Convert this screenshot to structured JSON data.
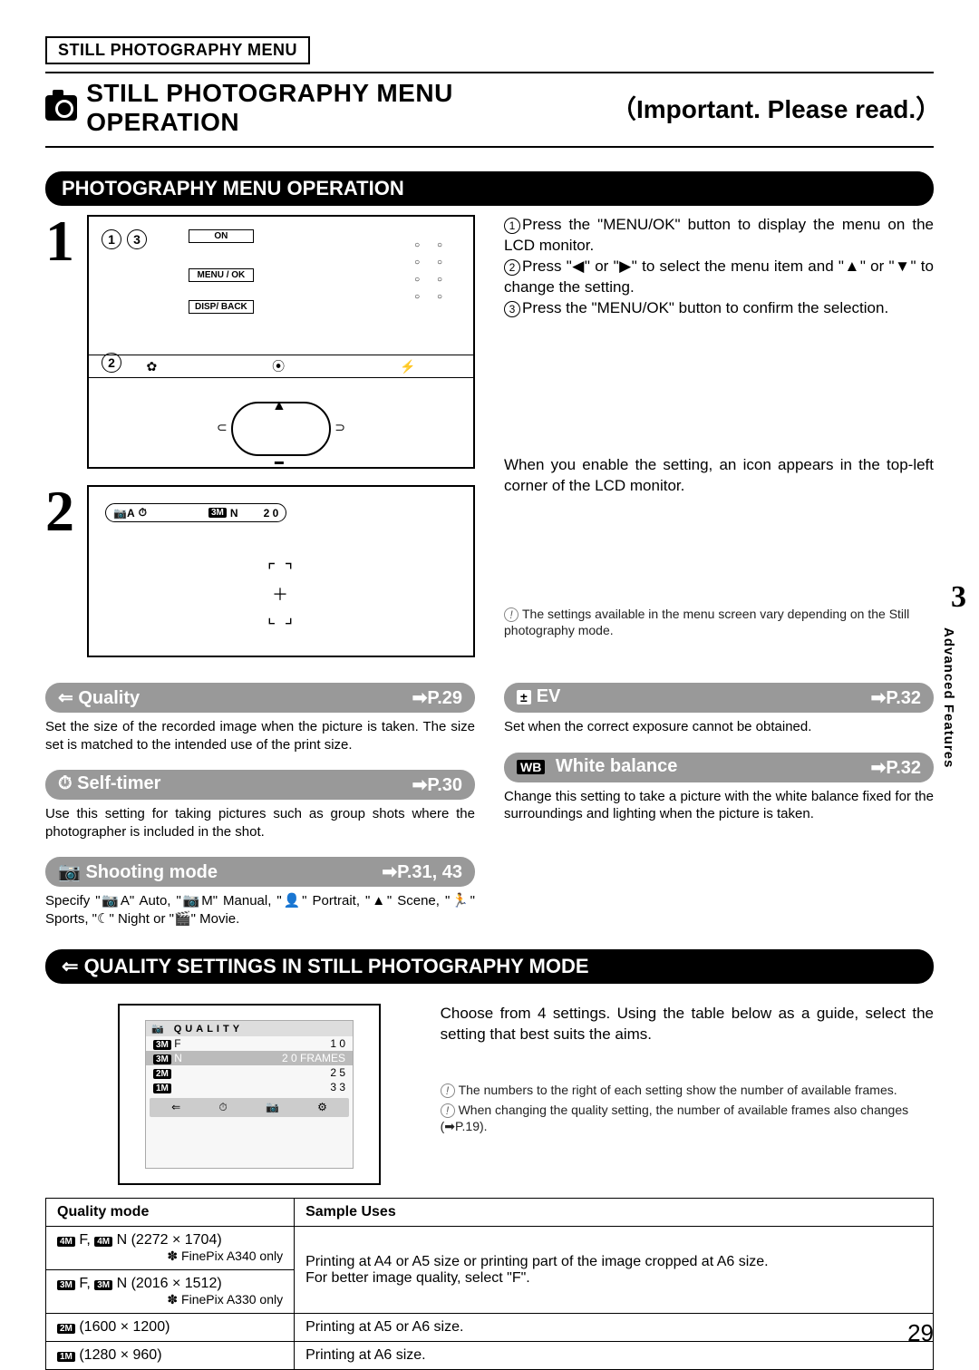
{
  "header": {
    "breadcrumb": "STILL PHOTOGRAPHY MENU",
    "title": "STILL PHOTOGRAPHY MENU OPERATION",
    "note": "（Important. Please read.）"
  },
  "section1": {
    "title": "PHOTOGRAPHY MENU OPERATION",
    "step1_circles": [
      "1",
      "3"
    ],
    "btns": {
      "on": "ON",
      "menu": "MENU / OK",
      "disp": "DISP/ BACK"
    },
    "step1_circle_below": "2",
    "mode_ico1": "✿",
    "mode_ico2": "⦿",
    "mode_ico3": "⚡",
    "step2_n": "2",
    "d2_badge_a": "📷A",
    "d2_badge_b": "3M",
    "d2_n": "N",
    "d2_val": "2 0",
    "instr1_n": "1",
    "instr1": "Press the \"MENU/OK\" button to display the menu on the LCD monitor.",
    "instr2_n": "2",
    "instr2": "Press \"◀\" or \"▶\" to select the menu item and \"▲\" or \"▼\" to change the setting.",
    "instr3_n": "3",
    "instr3": "Press the \"MENU/OK\" button to confirm the selection.",
    "para2": "When you enable the setting, an icon appears in the top-left corner of the LCD monitor.",
    "note1": "The settings available in the menu screen vary depending on the Still photography mode."
  },
  "pills": {
    "quality": {
      "icon": "⇐",
      "label": "Quality",
      "page": "➡P.29",
      "desc": "Set the size of the recorded image when the picture is taken. The size set is matched to the intended use of the print size."
    },
    "selftimer": {
      "icon": "⏱",
      "label": "Self-timer",
      "page": "➡P.30",
      "desc": "Use this setting for taking pictures such as group shots where the photographer is included in the shot."
    },
    "shooting": {
      "icon": "📷",
      "label": "Shooting mode",
      "page": "➡P.31, 43",
      "desc": "Specify \"📷A\" Auto, \"📷M\" Manual, \"👤\" Portrait, \"▲\" Scene, \"🏃\" Sports, \"☾\" Night or \"🎬\" Movie."
    },
    "ev": {
      "icon": "⚡",
      "label": "EV",
      "page": "➡P.32",
      "desc": "Set when the correct exposure cannot be obtained."
    },
    "wb": {
      "icon": "WB",
      "label": "White balance",
      "page": "➡P.32",
      "desc": "Change this setting to take a picture with the white balance fixed for the surroundings and lighting when the picture is taken."
    }
  },
  "side": {
    "num": "3",
    "label": "Advanced Features"
  },
  "section2": {
    "title_icon": "⇐",
    "title": "QUALITY SETTINGS IN STILL PHOTOGRAPHY MODE",
    "menu_title": "📷 QUALITY",
    "rows": [
      {
        "b": "3M",
        "l": "F",
        "v": "1 0"
      },
      {
        "b": "3M",
        "l": "N",
        "v": "2 0 FRAMES",
        "hl": true
      },
      {
        "b": "2M",
        "l": "",
        "v": "2 5"
      },
      {
        "b": "1M",
        "l": "",
        "v": "3 3"
      }
    ],
    "right_p": "Choose from 4 settings. Using the table below as a guide, select the setting that best suits the aims.",
    "note_a": "The numbers to the right of each setting show the number of available frames.",
    "note_b": "When changing the quality setting, the number of available frames also changes (➡P.19)."
  },
  "table": {
    "h1": "Quality mode",
    "h2": "Sample Uses",
    "r1_a_b": "4M",
    "r1_a": " F, ",
    "r1_a_b2": "4M",
    "r1_a2": " N (2272 × 1704)",
    "r1_note": "✽ FinePix A340 only",
    "r2_a_b": "3M",
    "r2_a": " F, ",
    "r2_a_b2": "3M",
    "r2_a2": " N (2016 × 1512)",
    "r2_note": "✽ FinePix A330 only",
    "r12_b": "Printing at A4 or A5 size or printing part of the image cropped at A6 size.\nFor better image quality, select \"F\".",
    "r3_a_b": "2M",
    "r3_a": " (1600 × 1200)",
    "r3_b": "Printing at A5 or A6 size.",
    "r4_a_b": "1M",
    "r4_a": " (1280 × 960)",
    "r4_b": "Printing at A6 size."
  },
  "page_number": "29"
}
